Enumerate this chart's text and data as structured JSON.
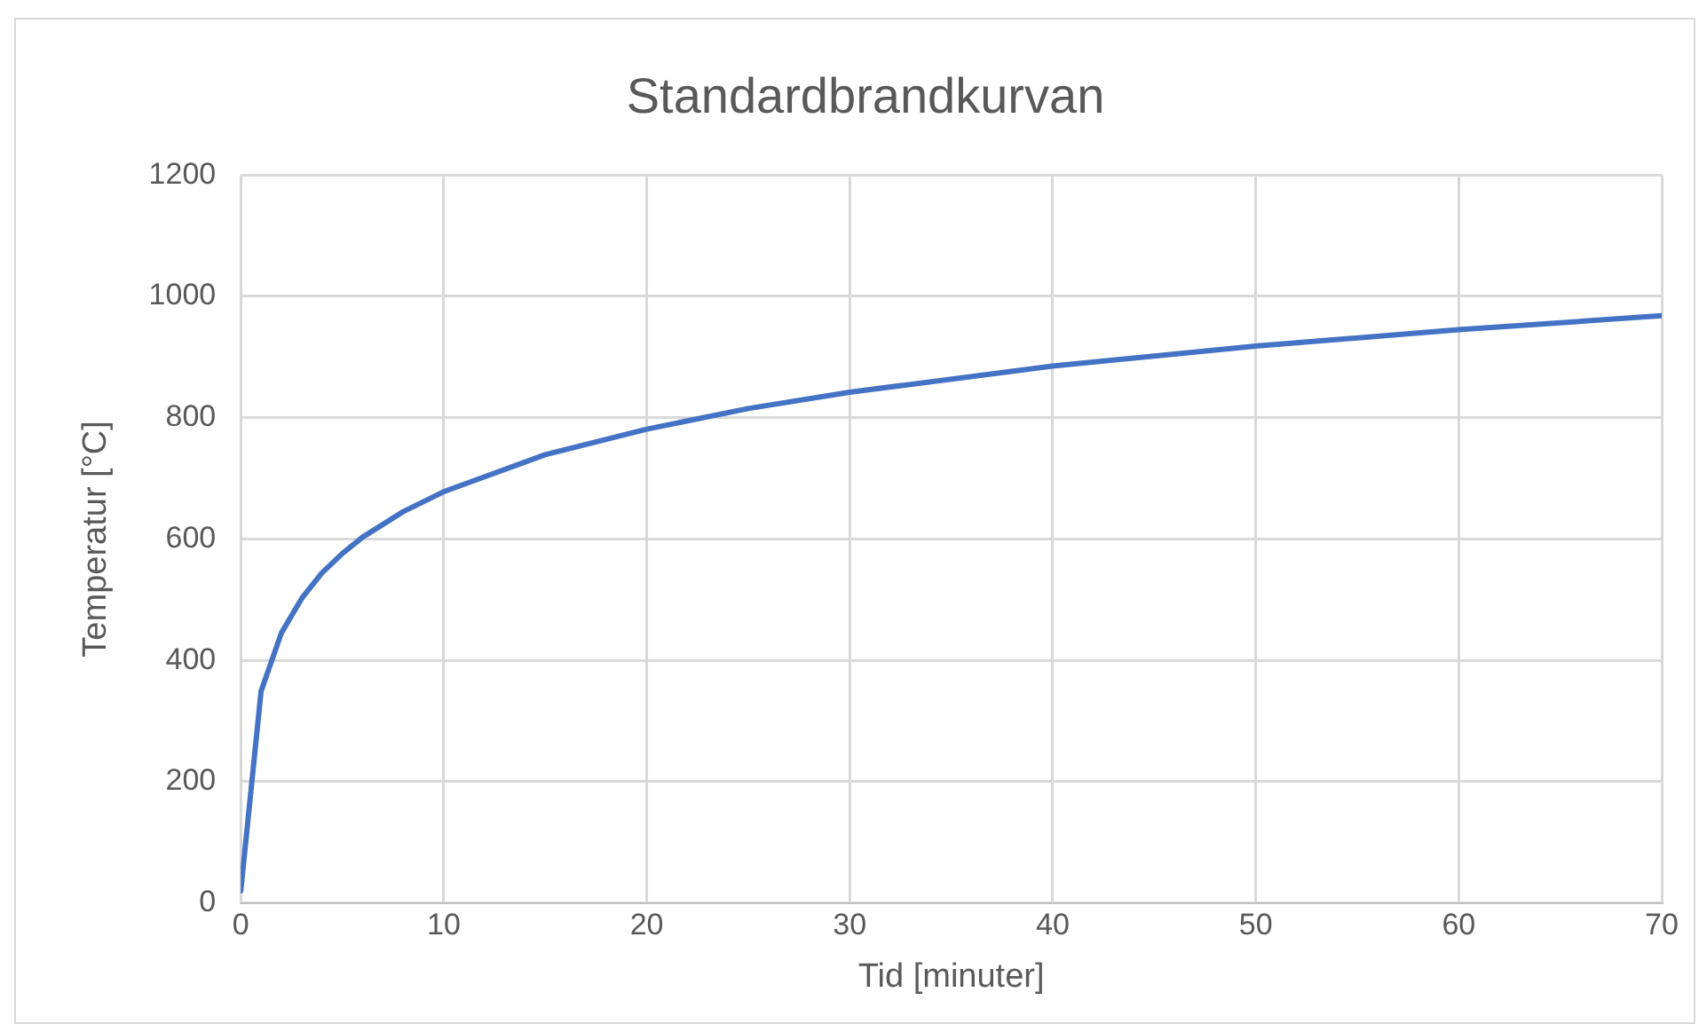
{
  "chart_data": {
    "type": "line",
    "title": "Standardbrandkurvan",
    "xlabel": "Tid [minuter]",
    "ylabel": "Temperatur [°C]",
    "x": [
      0,
      1,
      2,
      3,
      4,
      5,
      6,
      8,
      10,
      15,
      20,
      25,
      30,
      40,
      50,
      60,
      70
    ],
    "series": [
      {
        "color": "#4472c4",
        "values": [
          20,
          349,
          445,
          502,
          544,
          576,
          603,
          645,
          678,
          739,
          781,
          815,
          842,
          885,
          918,
          945,
          968
        ]
      }
    ],
    "xlim": [
      0,
      70
    ],
    "xticks": [
      0,
      10,
      20,
      30,
      40,
      50,
      60,
      70
    ],
    "ylim": [
      0,
      1200
    ],
    "yticks": [
      0,
      200,
      400,
      600,
      800,
      1000,
      1200
    ],
    "grid": true,
    "legend": false,
    "marker": "none",
    "line_style": "solid"
  }
}
